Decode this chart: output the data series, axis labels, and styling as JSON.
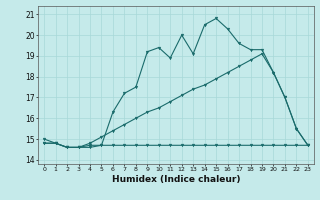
{
  "title": "",
  "xlabel": "Humidex (Indice chaleur)",
  "bg_color": "#c5eaea",
  "line_color": "#1a6b6b",
  "grid_color": "#a8d8d8",
  "xlim": [
    -0.5,
    23.5
  ],
  "ylim": [
    13.8,
    21.4
  ],
  "yticks": [
    14,
    15,
    16,
    17,
    18,
    19,
    20,
    21
  ],
  "xticks": [
    0,
    1,
    2,
    3,
    4,
    5,
    6,
    7,
    8,
    9,
    10,
    11,
    12,
    13,
    14,
    15,
    16,
    17,
    18,
    19,
    20,
    21,
    22,
    23
  ],
  "line1_x": [
    0,
    1,
    2,
    3,
    4,
    5,
    6,
    7,
    8,
    9,
    10,
    11,
    12,
    13,
    14,
    15,
    16,
    17,
    18,
    19,
    20,
    21,
    22,
    23
  ],
  "line1_y": [
    15.0,
    14.8,
    14.6,
    14.6,
    14.6,
    14.7,
    16.3,
    17.2,
    17.5,
    19.2,
    19.4,
    18.9,
    20.0,
    19.1,
    20.5,
    20.8,
    20.3,
    19.6,
    19.3,
    19.3,
    18.2,
    17.0,
    15.5,
    14.7
  ],
  "line2_x": [
    0,
    1,
    2,
    3,
    4,
    5,
    6,
    7,
    8,
    9,
    10,
    11,
    12,
    13,
    14,
    15,
    16,
    17,
    18,
    19,
    20,
    21,
    22,
    23
  ],
  "line2_y": [
    14.8,
    14.8,
    14.6,
    14.6,
    14.7,
    14.7,
    14.7,
    14.7,
    14.7,
    14.7,
    14.7,
    14.7,
    14.7,
    14.7,
    14.7,
    14.7,
    14.7,
    14.7,
    14.7,
    14.7,
    14.7,
    14.7,
    14.7,
    14.7
  ],
  "line3_x": [
    0,
    1,
    2,
    3,
    4,
    5,
    6,
    7,
    8,
    9,
    10,
    11,
    12,
    13,
    14,
    15,
    16,
    17,
    18,
    19,
    20,
    21,
    22,
    23
  ],
  "line3_y": [
    14.8,
    14.8,
    14.6,
    14.6,
    14.8,
    15.1,
    15.4,
    15.7,
    16.0,
    16.3,
    16.5,
    16.8,
    17.1,
    17.4,
    17.6,
    17.9,
    18.2,
    18.5,
    18.8,
    19.1,
    18.2,
    17.0,
    15.5,
    14.7
  ]
}
